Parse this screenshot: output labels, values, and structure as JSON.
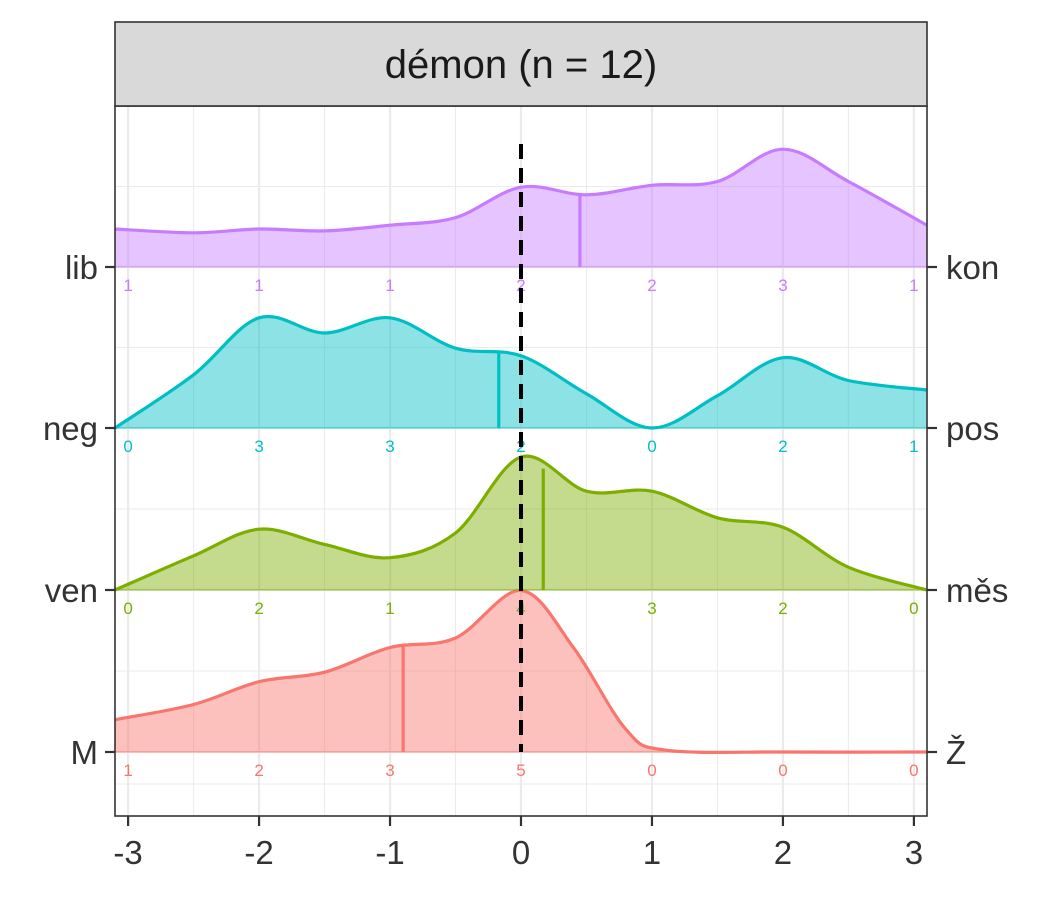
{
  "chart_data": {
    "type": "ridgeline",
    "title": "démon (n = 12)",
    "xlim": [
      -3.1,
      3.1
    ],
    "xticks": [
      -3,
      -2,
      -1,
      0,
      1,
      2,
      3
    ],
    "xtick_labels": [
      "-3",
      "-2",
      "-1",
      "0",
      "1",
      "2",
      "3"
    ],
    "reference_line_x": 0,
    "grid": true,
    "series": [
      {
        "left_label": "M",
        "right_label": "Ž",
        "color": "#F8766D",
        "mean": -0.9,
        "counts": [
          "1",
          "2",
          "3",
          "5",
          "0",
          "0",
          "0"
        ],
        "density": [
          [
            -3.1,
            0.17
          ],
          [
            -2.5,
            0.25
          ],
          [
            -2.0,
            0.37
          ],
          [
            -1.5,
            0.42
          ],
          [
            -1.0,
            0.55
          ],
          [
            -0.5,
            0.6
          ],
          [
            0.0,
            0.85
          ],
          [
            0.4,
            0.55
          ],
          [
            0.8,
            0.12
          ],
          [
            1.1,
            0.01
          ],
          [
            2.0,
            0.0
          ],
          [
            3.1,
            0.0
          ]
        ]
      },
      {
        "left_label": "ven",
        "right_label": "měs",
        "color": "#7CAE00",
        "mean": 0.17,
        "counts": [
          "0",
          "2",
          "1",
          "4",
          "3",
          "2",
          "0"
        ],
        "density": [
          [
            -3.1,
            0.0
          ],
          [
            -2.5,
            0.18
          ],
          [
            -2.0,
            0.32
          ],
          [
            -1.5,
            0.24
          ],
          [
            -1.0,
            0.17
          ],
          [
            -0.5,
            0.3
          ],
          [
            0.0,
            0.7
          ],
          [
            0.5,
            0.52
          ],
          [
            1.0,
            0.52
          ],
          [
            1.5,
            0.38
          ],
          [
            2.0,
            0.33
          ],
          [
            2.5,
            0.12
          ],
          [
            3.1,
            0.0
          ]
        ]
      },
      {
        "left_label": "neg",
        "right_label": "pos",
        "color": "#00BFC4",
        "mean": -0.17,
        "counts": [
          "0",
          "3",
          "3",
          "2",
          "0",
          "2",
          "1"
        ],
        "density": [
          [
            -3.1,
            0.0
          ],
          [
            -2.5,
            0.28
          ],
          [
            -2.0,
            0.58
          ],
          [
            -1.5,
            0.5
          ],
          [
            -1.0,
            0.58
          ],
          [
            -0.5,
            0.42
          ],
          [
            0.0,
            0.38
          ],
          [
            0.5,
            0.18
          ],
          [
            1.0,
            0.0
          ],
          [
            1.5,
            0.17
          ],
          [
            2.0,
            0.37
          ],
          [
            2.5,
            0.25
          ],
          [
            3.1,
            0.2
          ]
        ]
      },
      {
        "left_label": "lib",
        "right_label": "kon",
        "color": "#C77CFF",
        "mean": 0.45,
        "counts": [
          "1",
          "1",
          "1",
          "2",
          "2",
          "3",
          "1"
        ],
        "density": [
          [
            -3.1,
            0.2
          ],
          [
            -2.5,
            0.18
          ],
          [
            -2.0,
            0.2
          ],
          [
            -1.5,
            0.19
          ],
          [
            -1.0,
            0.22
          ],
          [
            -0.5,
            0.26
          ],
          [
            0.0,
            0.42
          ],
          [
            0.5,
            0.38
          ],
          [
            1.0,
            0.43
          ],
          [
            1.5,
            0.45
          ],
          [
            2.0,
            0.62
          ],
          [
            2.5,
            0.45
          ],
          [
            3.1,
            0.22
          ]
        ]
      }
    ]
  }
}
